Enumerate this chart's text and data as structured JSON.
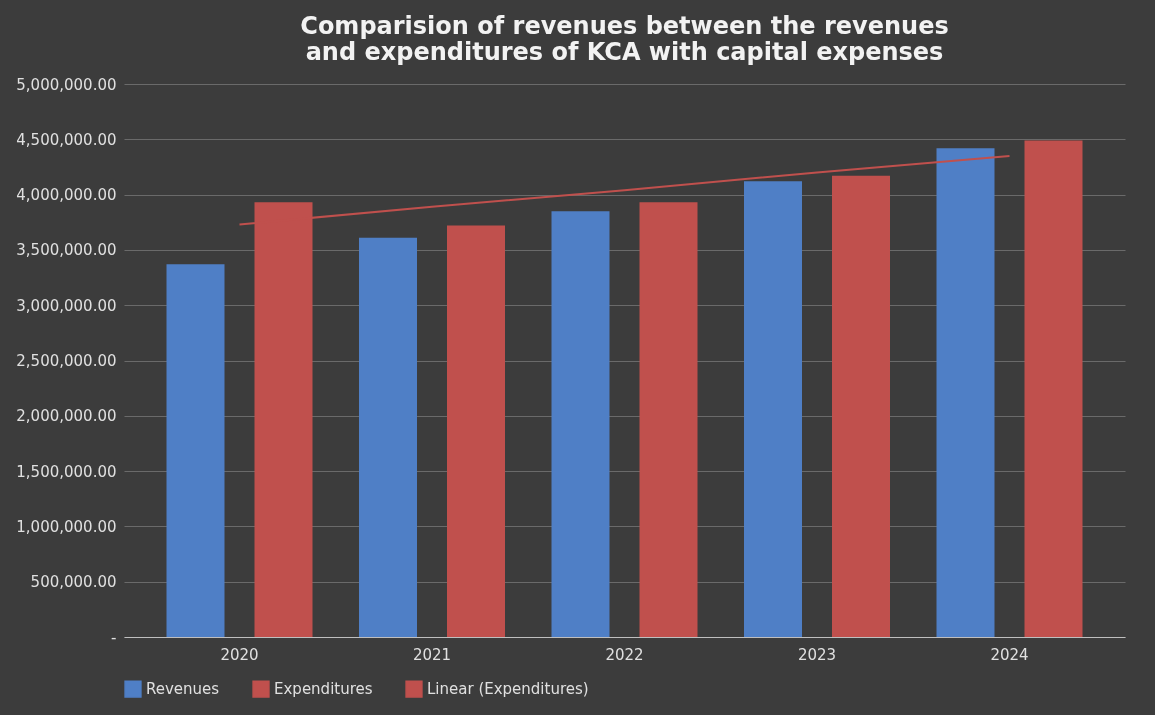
{
  "chart_data": {
    "type": "bar",
    "title": "Comparision of revenues between the revenues and expenditures of KCA with capital expenses",
    "categories": [
      "2020",
      "2021",
      "2022",
      "2023",
      "2024"
    ],
    "series": [
      {
        "name": "Revenues",
        "color": "#4f7fc6",
        "values": [
          3370000,
          3610000,
          3850000,
          4120000,
          4420000
        ]
      },
      {
        "name": "Expenditures",
        "color": "#c0504d",
        "values": [
          3930000,
          3720000,
          3930000,
          4170000,
          4490000
        ]
      },
      {
        "name": "Linear (Expenditures)",
        "type": "line",
        "color": "#c0504d",
        "values": [
          3730000,
          3890000,
          4040000,
          4200000,
          4350000
        ]
      }
    ],
    "ylim": [
      0,
      5000000
    ],
    "yticks": [
      {
        "value": 0,
        "label": "-"
      },
      {
        "value": 500000,
        "label": "500,000.00"
      },
      {
        "value": 1000000,
        "label": "1,000,000.00"
      },
      {
        "value": 1500000,
        "label": "1,500,000.00"
      },
      {
        "value": 2000000,
        "label": "2,000,000.00"
      },
      {
        "value": 2500000,
        "label": "2,500,000.00"
      },
      {
        "value": 3000000,
        "label": "3,000,000.00"
      },
      {
        "value": 3500000,
        "label": "3,500,000.00"
      },
      {
        "value": 4000000,
        "label": "4,000,000.00"
      },
      {
        "value": 4500000,
        "label": "4,500,000.00"
      },
      {
        "value": 5000000,
        "label": "5,000,000.00"
      }
    ],
    "grid": "y",
    "legend": "bottom"
  }
}
